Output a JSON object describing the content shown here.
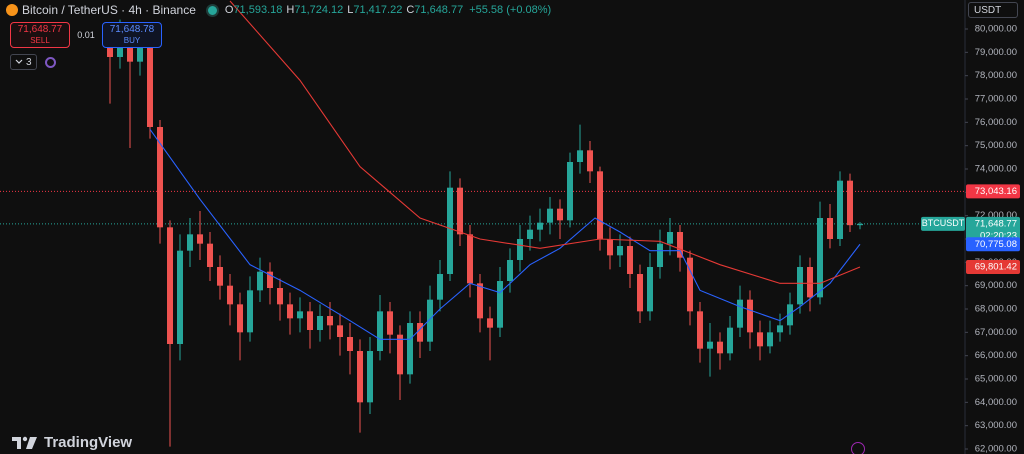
{
  "chart_data": {
    "type": "candlestick",
    "title": "Bitcoin / TetherUS · 4h · Binance",
    "legend_values": [
      {
        "key": "O",
        "value": "71,593.18"
      },
      {
        "key": "H",
        "value": "71,724.12"
      },
      {
        "key": "L",
        "value": "71,417.22"
      },
      {
        "key": "C",
        "value": "71,648.77"
      }
    ],
    "change": "+55.58 (+0.08%)",
    "trade": {
      "sell_price": "71,648.77",
      "sell_label": "SELL",
      "quantity": "0.01",
      "buy_price": "71,648.78",
      "buy_label": "BUY"
    },
    "indicator_count": "3",
    "currency": "USDT",
    "brand": "TradingView",
    "up_color": "#26a69a",
    "down_color": "#ef5350",
    "ylim": [
      61786,
      81243
    ],
    "yticks": [
      {
        "value": 62000,
        "label": "62,000.00"
      },
      {
        "value": 63000,
        "label": "63,000.00"
      },
      {
        "value": 64000,
        "label": "64,000.00"
      },
      {
        "value": 65000,
        "label": "65,000.00"
      },
      {
        "value": 66000,
        "label": "66,000.00"
      },
      {
        "value": 67000,
        "label": "67,000.00"
      },
      {
        "value": 68000,
        "label": "68,000.00"
      },
      {
        "value": 69000,
        "label": "69,000.00"
      },
      {
        "value": 70000,
        "label": "70,000.00"
      },
      {
        "value": 71000,
        "label": "71,000.00"
      },
      {
        "value": 72000,
        "label": "72,000.00"
      },
      {
        "value": 73000,
        "label": "73,000.00"
      },
      {
        "value": 74000,
        "label": "74,000.00"
      },
      {
        "value": 75000,
        "label": "75,000.00"
      },
      {
        "value": 76000,
        "label": "76,000.00"
      },
      {
        "value": 77000,
        "label": "77,000.00"
      },
      {
        "value": 78000,
        "label": "78,000.00"
      },
      {
        "value": 79000,
        "label": "79,000.00"
      },
      {
        "value": 80000,
        "label": "80,000.00"
      }
    ],
    "open": [
      79300,
      78800,
      79500,
      78600,
      79200,
      75800,
      71500,
      66500,
      70500,
      71200,
      70800,
      69800,
      69000,
      68200,
      67000,
      68800,
      69600,
      68900,
      68200,
      67600,
      67900,
      67100,
      67700,
      67300,
      66800,
      66200,
      64000,
      66200,
      67900,
      66900,
      65200,
      67400,
      66600,
      68400,
      69500,
      73200,
      71200,
      69100,
      67600,
      67200,
      69200,
      70100,
      71000,
      71400,
      71700,
      72300,
      71800,
      74300,
      74800,
      73900,
      71000,
      70300,
      70700,
      69500,
      67900,
      69800,
      70800,
      71300,
      70200,
      67900,
      66300,
      66600,
      66100,
      67200,
      68400,
      67000,
      66400,
      67000,
      67300,
      68200,
      69800,
      68500,
      71900,
      71000,
      73500,
      71593.18
    ],
    "high": [
      80200,
      80400,
      79900,
      80000,
      79400,
      76100,
      71800,
      71200,
      71900,
      72200,
      71300,
      70300,
      69500,
      68700,
      69400,
      70200,
      70000,
      69300,
      68700,
      68500,
      68300,
      68200,
      68300,
      67800,
      67400,
      66700,
      66800,
      68600,
      68300,
      67300,
      67900,
      67900,
      69000,
      70100,
      73900,
      73600,
      71600,
      69500,
      68100,
      69800,
      70600,
      71600,
      72000,
      72300,
      72800,
      72700,
      74700,
      75900,
      75200,
      74100,
      71500,
      71200,
      71100,
      69900,
      70400,
      71400,
      71900,
      71600,
      70500,
      68300,
      67400,
      67000,
      67700,
      69000,
      68800,
      67500,
      67500,
      67800,
      68700,
      70300,
      70200,
      72600,
      72500,
      73900,
      73800,
      71724.12
    ],
    "low": [
      76800,
      78300,
      74900,
      78000,
      75300,
      70800,
      62100,
      65800,
      69800,
      70100,
      69200,
      68400,
      67300,
      65800,
      66600,
      68300,
      68200,
      67500,
      66900,
      67000,
      66300,
      66600,
      66700,
      66000,
      65200,
      62700,
      63500,
      65800,
      66100,
      64100,
      64800,
      65900,
      66200,
      67900,
      69200,
      70700,
      68500,
      67000,
      65800,
      66800,
      68700,
      69600,
      70500,
      70900,
      71200,
      71000,
      71500,
      73800,
      73400,
      70500,
      69700,
      69800,
      68900,
      67400,
      67500,
      69300,
      70300,
      69600,
      67300,
      65700,
      65100,
      65400,
      65800,
      66800,
      66300,
      65800,
      66100,
      66600,
      66900,
      67800,
      67900,
      68200,
      70600,
      70700,
      71300,
      71417.22
    ],
    "close": [
      78800,
      79500,
      78600,
      79200,
      75800,
      71500,
      66500,
      70500,
      71200,
      70800,
      69800,
      69000,
      68200,
      67000,
      68800,
      69600,
      68900,
      68200,
      67600,
      67900,
      67100,
      67700,
      67300,
      66800,
      66200,
      64000,
      66200,
      67900,
      66900,
      65200,
      67400,
      66600,
      68400,
      69500,
      73200,
      71200,
      69100,
      67600,
      67200,
      69200,
      70100,
      71000,
      71400,
      71700,
      72300,
      71800,
      74300,
      74800,
      73900,
      71000,
      70300,
      70700,
      69500,
      67900,
      69800,
      70800,
      71300,
      70200,
      67900,
      66300,
      66600,
      66100,
      67200,
      68400,
      67000,
      66400,
      67000,
      67300,
      68200,
      69800,
      68500,
      71900,
      71000,
      73500,
      71593.18,
      71648.77
    ],
    "series": [
      {
        "color": "#2962ff",
        "x": [
          4,
          9,
          14,
          19,
          24,
          27,
          30,
          33,
          36,
          39,
          42,
          45,
          48.5,
          51,
          54,
          57,
          59,
          63,
          67,
          69,
          72,
          75
        ],
        "values": [
          75700,
          72700,
          69900,
          68800,
          67500,
          66700,
          66700,
          68000,
          69100,
          68700,
          69900,
          70600,
          71900,
          71300,
          70500,
          70500,
          68800,
          68100,
          67500,
          68100,
          69100,
          70775.08
        ],
        "end_label": "70,775.08"
      },
      {
        "color": "#e53935",
        "x": [
          12,
          19,
          25,
          31,
          37,
          43,
          49,
          55,
          61,
          67,
          71,
          75
        ],
        "values": [
          81200,
          77800,
          74100,
          71900,
          71000,
          70600,
          71000,
          70900,
          69900,
          69100,
          69100,
          69801.42
        ],
        "end_label": "69,801.42"
      }
    ],
    "price_lines": [
      {
        "value": 73043.16,
        "label": "73,043.16",
        "color": "#f23645"
      },
      {
        "value": 71648.77,
        "label": "71,648.77",
        "color": "#26a69a",
        "symbol": "BTCUSDT",
        "countdown": "02:20:23"
      }
    ],
    "grid": false
  }
}
